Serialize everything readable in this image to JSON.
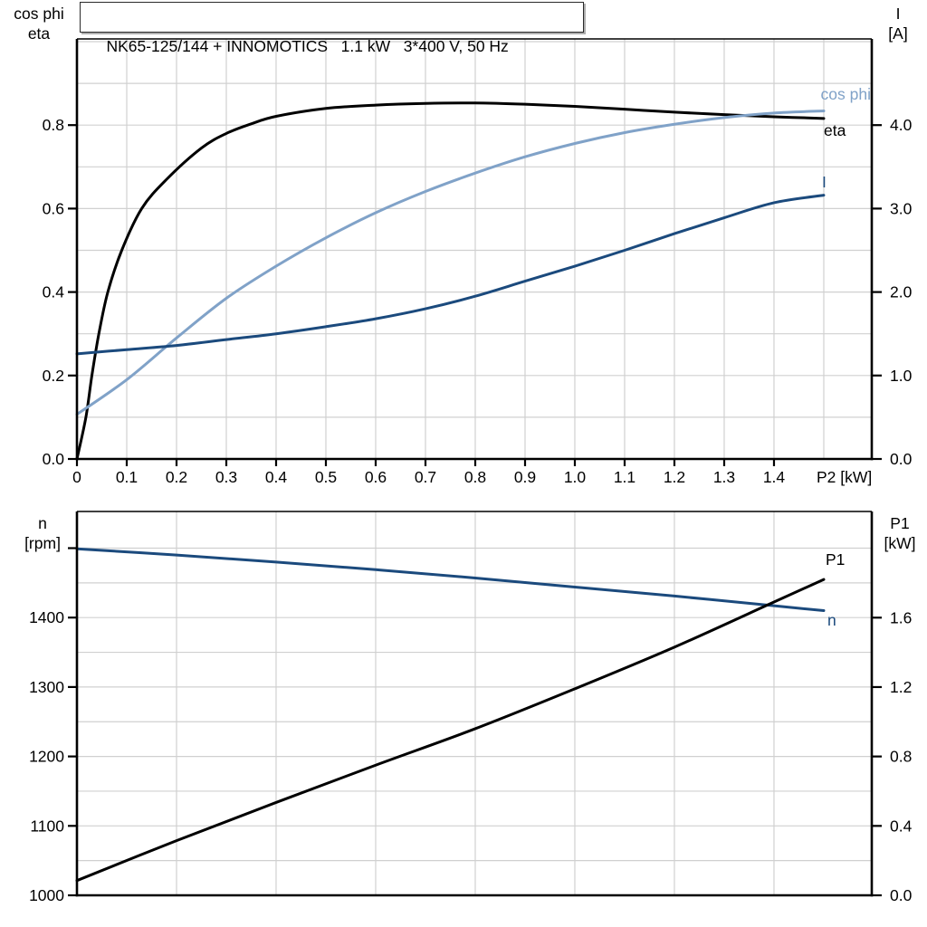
{
  "colors": {
    "black": "#000000",
    "dark_blue": "#1b4a7d",
    "light_blue": "#80a2c8",
    "grid": "#d0d0d0",
    "frame": "#000000",
    "text": "#000000"
  },
  "chart_data": [
    {
      "id": "motor-curves",
      "type": "line",
      "title": "NK65-125/144 + INNOMOTICS   1.1 kW   3*400 V, 50 Hz",
      "xlabel": "P2 [kW]",
      "x_axis": {
        "range": [
          0,
          1.5964
        ],
        "grid_step": 0.1,
        "tick_values": [
          0,
          0.1,
          0.2,
          0.3,
          0.4,
          0.5,
          0.6,
          0.7,
          0.8,
          0.9,
          1.0,
          1.1,
          1.2,
          1.3,
          1.4
        ],
        "tick_labels": [
          "0",
          "0.1",
          "0.2",
          "0.3",
          "0.4",
          "0.5",
          "0.6",
          "0.7",
          "0.8",
          "0.9",
          "1.0",
          "1.1",
          "1.2",
          "1.3",
          "1.4"
        ],
        "show_tick_labels": true
      },
      "left_axis": {
        "title_lines": [
          "cos phi",
          "eta"
        ],
        "range": [
          0,
          1.0065
        ],
        "grid_step": 0.1,
        "tick_values": [
          0,
          0.2,
          0.4,
          0.6,
          0.8
        ],
        "tick_labels": [
          "0.0",
          "0.2",
          "0.4",
          "0.6",
          "0.8"
        ]
      },
      "right_axis": {
        "title_lines": [
          "I",
          "[A]"
        ],
        "range": [
          0,
          5.0325
        ],
        "grid_step": 0.5,
        "tick_values": [
          0,
          1,
          2,
          3,
          4
        ],
        "tick_labels": [
          "0.0",
          "1.0",
          "2.0",
          "3.0",
          "4.0"
        ]
      },
      "series": [
        {
          "name": "eta",
          "label": "eta",
          "axis": "left",
          "color_key": "black",
          "x": [
            0,
            0.018,
            0.03,
            0.044,
            0.062,
            0.09,
            0.13,
            0.18,
            0.25,
            0.3,
            0.35,
            0.4,
            0.5,
            0.6,
            0.7,
            0.8,
            0.9,
            1.0,
            1.1,
            1.2,
            1.3,
            1.4,
            1.5
          ],
          "y": [
            0,
            0.1,
            0.2,
            0.3,
            0.4,
            0.5,
            0.6,
            0.67,
            0.745,
            0.78,
            0.803,
            0.821,
            0.84,
            0.848,
            0.852,
            0.853,
            0.85,
            0.845,
            0.838,
            0.831,
            0.825,
            0.82,
            0.816
          ]
        },
        {
          "name": "cos_phi",
          "label": "cos phi",
          "axis": "left",
          "color_key": "light_blue",
          "x": [
            0,
            0.1,
            0.2,
            0.3,
            0.4,
            0.5,
            0.6,
            0.7,
            0.8,
            0.9,
            1.0,
            1.1,
            1.2,
            1.3,
            1.4,
            1.5
          ],
          "y": [
            0.107,
            0.19,
            0.29,
            0.385,
            0.462,
            0.53,
            0.59,
            0.641,
            0.685,
            0.724,
            0.756,
            0.782,
            0.802,
            0.818,
            0.829,
            0.834
          ]
        },
        {
          "name": "I",
          "label": "I",
          "axis": "right",
          "color_key": "dark_blue",
          "x": [
            0,
            0.1,
            0.2,
            0.3,
            0.4,
            0.5,
            0.6,
            0.7,
            0.8,
            0.9,
            1.0,
            1.1,
            1.2,
            1.3,
            1.4,
            1.5
          ],
          "y": [
            1.26,
            1.31,
            1.36,
            1.43,
            1.5,
            1.585,
            1.68,
            1.8,
            1.95,
            2.13,
            2.31,
            2.5,
            2.7,
            2.89,
            3.07,
            3.16
          ]
        }
      ]
    },
    {
      "id": "speed-power-curves",
      "type": "line",
      "title": "",
      "xlabel": "",
      "x_axis": {
        "range": [
          0,
          1.5964
        ],
        "grid_step": 0.2,
        "tick_values": [],
        "tick_labels": [],
        "show_tick_labels": false
      },
      "left_axis": {
        "title_lines": [
          "n",
          "[rpm]"
        ],
        "range": [
          1000,
          1552.8
        ],
        "grid_step": 50,
        "tick_values": [
          1000,
          1100,
          1200,
          1300,
          1400,
          1500
        ],
        "tick_labels": [
          "1000",
          "1100",
          "1200",
          "1300",
          "1400",
          ""
        ]
      },
      "right_axis": {
        "title_lines": [
          "P1",
          "[kW]"
        ],
        "range": [
          0,
          2.2117
        ],
        "grid_step": 0.2,
        "tick_values": [
          0,
          0.4,
          0.8,
          1.2,
          1.6
        ],
        "tick_labels": [
          "0.0",
          "0.4",
          "0.8",
          "1.2",
          "1.6"
        ]
      },
      "series": [
        {
          "name": "n",
          "label": "n",
          "axis": "left",
          "color_key": "dark_blue",
          "x": [
            0,
            0.2,
            0.4,
            0.6,
            0.8,
            1.0,
            1.2,
            1.4,
            1.5
          ],
          "y": [
            1499,
            1490,
            1480,
            1469,
            1457,
            1444,
            1431,
            1417,
            1410
          ]
        },
        {
          "name": "P1",
          "label": "P1",
          "axis": "right",
          "color_key": "black",
          "x": [
            0,
            0.2,
            0.4,
            0.6,
            0.8,
            1.0,
            1.2,
            1.4,
            1.5
          ],
          "y": [
            0.085,
            0.315,
            0.535,
            0.75,
            0.96,
            1.19,
            1.43,
            1.69,
            1.82
          ]
        }
      ]
    }
  ]
}
